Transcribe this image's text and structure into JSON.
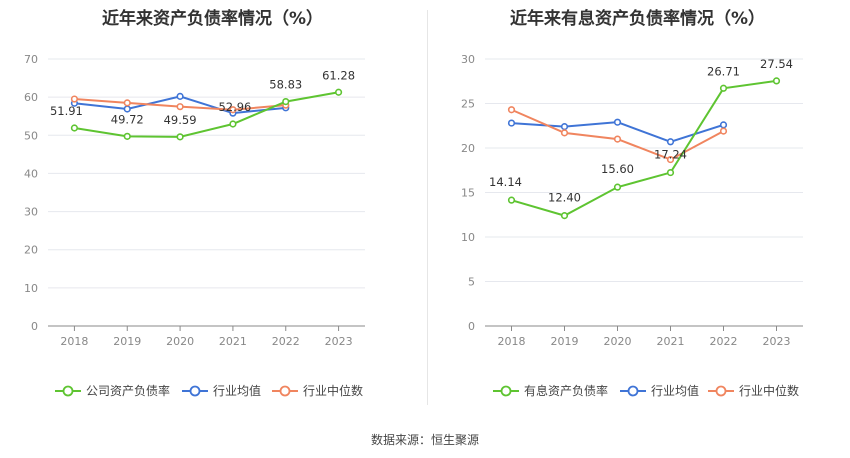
{
  "source": "数据来源：恒生聚源",
  "colors": {
    "main": "#5ec431",
    "avg": "#3f74d6",
    "median": "#f0855f"
  },
  "chart_data": [
    {
      "type": "line",
      "title": "近年来资产负债率情况（%）",
      "categories": [
        "2018",
        "2019",
        "2020",
        "2021",
        "2022",
        "2023"
      ],
      "ylim": [
        0,
        70
      ],
      "yticks": [
        0,
        10,
        20,
        30,
        40,
        50,
        60,
        70
      ],
      "legend_position": "bottom",
      "series": [
        {
          "name": "公司资产负债率",
          "color": "#5ec431",
          "values": [
            51.91,
            49.72,
            49.59,
            52.96,
            58.83,
            61.28
          ],
          "labels": [
            "51.91",
            "49.72",
            "49.59",
            "52.96",
            "58.83",
            "61.28"
          ]
        },
        {
          "name": "行业均值",
          "color": "#3f74d6",
          "values": [
            58.4,
            56.9,
            60.2,
            55.8,
            57.2,
            null
          ]
        },
        {
          "name": "行业中位数",
          "color": "#f0855f",
          "values": [
            59.5,
            58.5,
            57.5,
            56.7,
            57.9,
            null
          ]
        }
      ]
    },
    {
      "type": "line",
      "title": "近年来有息资产负债率情况（%）",
      "categories": [
        "2018",
        "2019",
        "2020",
        "2021",
        "2022",
        "2023"
      ],
      "ylim": [
        0,
        30
      ],
      "yticks": [
        0,
        5,
        10,
        15,
        20,
        25,
        30
      ],
      "legend_position": "bottom",
      "series": [
        {
          "name": "有息资产负债率",
          "color": "#5ec431",
          "values": [
            14.14,
            12.4,
            15.6,
            17.24,
            26.71,
            27.54
          ],
          "labels": [
            "14.14",
            "12.40",
            "15.60",
            "17.24",
            "26.71",
            "27.54"
          ]
        },
        {
          "name": "行业均值",
          "color": "#3f74d6",
          "values": [
            22.8,
            22.4,
            22.9,
            20.7,
            22.6,
            null
          ]
        },
        {
          "name": "行业中位数",
          "color": "#f0855f",
          "values": [
            24.3,
            21.7,
            21.0,
            18.7,
            21.9,
            null
          ]
        }
      ]
    }
  ]
}
